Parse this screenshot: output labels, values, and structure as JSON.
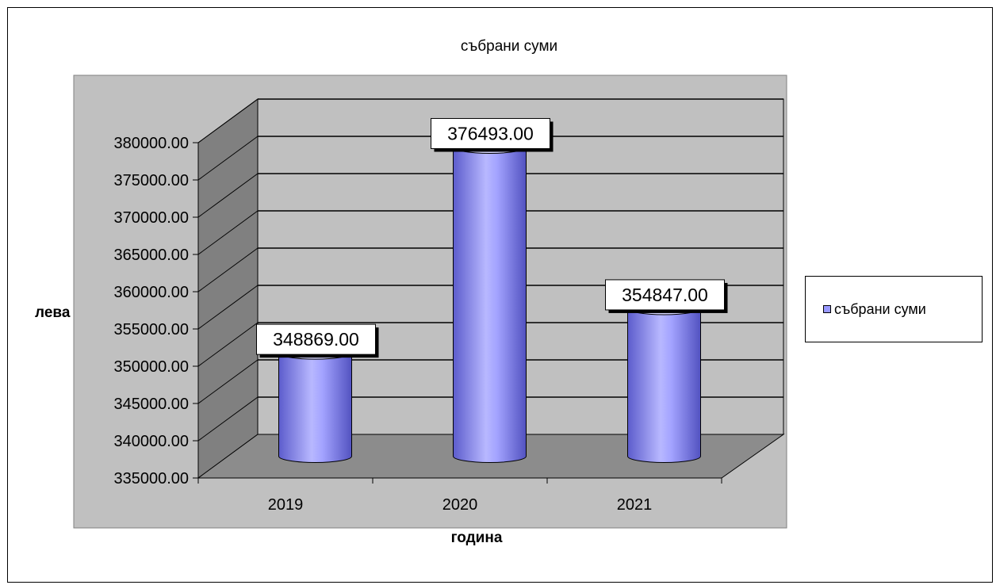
{
  "chart_data": {
    "type": "bar",
    "style": "3d-cylinder",
    "title": "събрани суми",
    "xlabel": "година",
    "ylabel": "лева",
    "categories": [
      "2019",
      "2020",
      "2021"
    ],
    "series": [
      {
        "name": "събрани суми",
        "values": [
          348869.0,
          376493.0,
          354847.0
        ]
      }
    ],
    "data_labels": [
      "348869.00",
      "376493.00",
      "354847.00"
    ],
    "y_ticks": [
      "335000.00",
      "340000.00",
      "345000.00",
      "350000.00",
      "355000.00",
      "360000.00",
      "365000.00",
      "370000.00",
      "375000.00",
      "380000.00"
    ],
    "ylim": [
      335000,
      380000
    ],
    "grid": true,
    "legend": "right",
    "colors": {
      "bar": "#9999ff",
      "bar_dark": "#5c5ccc",
      "bar_light": "#d6d6ff",
      "wall": "#c0c0c0",
      "plot_bg": "#c0c0c0",
      "side_wall": "#808080",
      "floor": "#8c8c8c"
    }
  }
}
